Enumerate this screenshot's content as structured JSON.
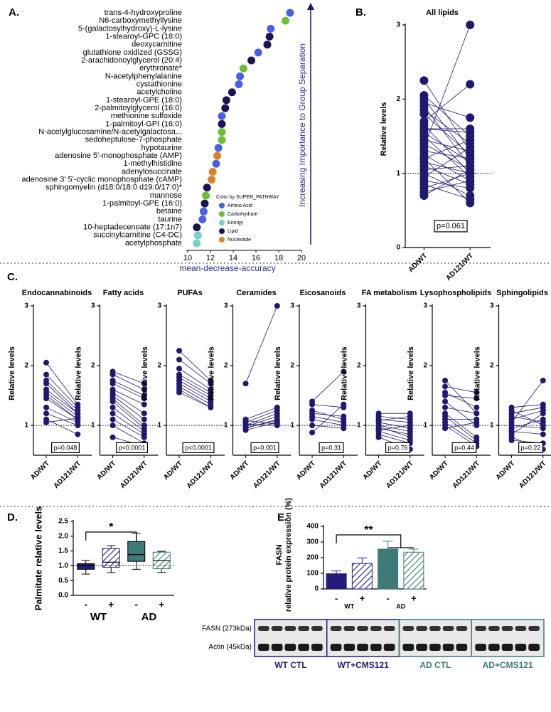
{
  "chart_data": [
    {
      "panel": "A.",
      "type": "dot",
      "categories": [
        "trans-4-hydroxyproline",
        "N6-carboxymethyllysine",
        "5-(galactosylhydroxy)-L-lysine",
        "1-stearoyl-GPC (18:0)",
        "deoxycarnitine",
        "glutathione oxidized (GSSG)",
        "2-arachidonoylglycerol (20:4)",
        "erythronate*",
        "N-acetylphenylalanine",
        "cystathionine",
        "acetylcholine",
        "1-stearoyl-GPE (18:0)",
        "2-palmitoylglycerol (16:0)",
        "methionine sulfoxide",
        "1-palmitoyl-GPI (16:0)",
        "N-acetylglucosamine/N-acetylgalactosa...",
        "sedoheptulose-7-phosphate",
        "hypotaurine",
        "adenosine 5'-monophosphate (AMP)",
        "1-methylhistidine",
        "adenylosuccinate",
        "adenosine 3' 5'-cyclic monophosphate (cAMP)",
        "sphingomyelin (d18:0/18:0 d19:0/17:0)*",
        "mannose",
        "1-palmitoyl-GPE (16:0)",
        "betaine",
        "taurine",
        "10-heptadecenoate (17:1n7)",
        "succinylcarnitine (C4-DC)",
        "acetylphosphate"
      ],
      "series": [
        {
          "name": "Amino Acid",
          "color": "#4a5fe3",
          "values": [
            19.0,
            null,
            17.3,
            null,
            null,
            16.2,
            null,
            null,
            14.6,
            14.5,
            null,
            null,
            null,
            13.0,
            null,
            null,
            null,
            12.7,
            null,
            12.5,
            null,
            null,
            null,
            null,
            null,
            11.4,
            11.3,
            null,
            null,
            null
          ]
        },
        {
          "name": "Carbohydrate",
          "color": "#6cbf35",
          "values": [
            null,
            18.6,
            null,
            null,
            null,
            null,
            null,
            14.9,
            null,
            null,
            null,
            null,
            null,
            null,
            null,
            13.0,
            13.0,
            null,
            null,
            null,
            null,
            null,
            null,
            11.6,
            null,
            null,
            null,
            null,
            null,
            null
          ]
        },
        {
          "name": "Energy",
          "color": "#74d3c3",
          "values": [
            null,
            null,
            null,
            null,
            null,
            null,
            null,
            null,
            null,
            null,
            null,
            null,
            null,
            null,
            null,
            null,
            null,
            null,
            null,
            null,
            null,
            null,
            null,
            null,
            null,
            null,
            null,
            null,
            10.9,
            10.8
          ]
        },
        {
          "name": "Lipid",
          "color": "#1b1450",
          "values": [
            null,
            null,
            null,
            17.2,
            17.0,
            null,
            15.6,
            null,
            null,
            null,
            13.9,
            13.4,
            13.3,
            null,
            13.0,
            null,
            null,
            null,
            null,
            null,
            null,
            null,
            11.7,
            null,
            11.5,
            null,
            null,
            10.8,
            null,
            null
          ]
        },
        {
          "name": "Nucleotide",
          "color": "#d9822b",
          "values": [
            null,
            null,
            null,
            null,
            null,
            null,
            null,
            null,
            null,
            null,
            null,
            null,
            null,
            null,
            null,
            null,
            null,
            null,
            12.6,
            null,
            12.2,
            12.1,
            null,
            null,
            null,
            null,
            null,
            null,
            null,
            null
          ]
        }
      ],
      "xlim": [
        10,
        20
      ],
      "xticks": [
        10,
        12,
        14,
        16,
        18,
        20
      ],
      "xlabel": "mean-decrease-accuracy",
      "ylabel": "Increasing Importance to Group Separation",
      "legend_title": "Color by SUPER_PATHWAY",
      "legend": "lower right"
    },
    {
      "panel": "B.",
      "type": "paired",
      "title": "All lipids",
      "categories": [
        "AD/WT",
        "AD121/WT"
      ],
      "values": [
        [
          2.25,
          2.05,
          2.0,
          1.95,
          1.9,
          1.85,
          1.8,
          1.7,
          1.65,
          1.6,
          1.55,
          1.5,
          1.45,
          1.4,
          1.35,
          1.3,
          1.25,
          1.2,
          1.15,
          1.1,
          1.05,
          1.0,
          0.95,
          0.9,
          0.85,
          0.8,
          0.75,
          1.6,
          1.2,
          0.7
        ],
        [
          1.3,
          1.5,
          1.2,
          1.75,
          1.1,
          1.4,
          1.25,
          2.2,
          1.0,
          1.6,
          1.15,
          0.95,
          1.3,
          1.05,
          3.0,
          1.2,
          0.9,
          1.45,
          1.0,
          0.85,
          1.1,
          0.7,
          1.35,
          0.8,
          0.65,
          1.0,
          0.9,
          1.55,
          0.6,
          1.05
        ]
      ],
      "ylim": [
        0,
        3
      ],
      "yticks": [
        0,
        1,
        2,
        3
      ],
      "ylabel": "Relative levels",
      "refline": 1,
      "annotation": "p=0.061",
      "color": "#1f1a6e"
    },
    {
      "panel": "C.",
      "type": "paired",
      "title": "Endocannabinoids",
      "categories": [
        "AD/WT",
        "AD121/WT"
      ],
      "values": [
        [
          2.05,
          1.85,
          1.75,
          1.7,
          1.55,
          1.5,
          1.45,
          1.3,
          1.2,
          1.1,
          1.05,
          1.6
        ],
        [
          1.35,
          1.3,
          1.25,
          1.2,
          1.15,
          1.1,
          1.1,
          1.05,
          1.0,
          0.85,
          1.12,
          1.2
        ]
      ],
      "ylim": [
        0.5,
        3
      ],
      "yticks": [
        1,
        2,
        3
      ],
      "ylabel": "Relative levels",
      "refline": 1,
      "annotation": "p=0.048",
      "color": "#1f1a6e"
    },
    {
      "type": "paired",
      "title": "Fatty acids",
      "categories": [
        "AD/WT",
        "AD121/WT"
      ],
      "values": [
        [
          1.9,
          1.85,
          1.75,
          1.7,
          1.6,
          1.55,
          1.5,
          1.45,
          1.4,
          1.3,
          1.2,
          1.1,
          1.0,
          0.8
        ],
        [
          1.7,
          1.6,
          1.5,
          1.45,
          1.35,
          1.2,
          1.1,
          1.0,
          0.95,
          0.9,
          0.85,
          0.8,
          0.7,
          0.65
        ]
      ],
      "ylim": [
        0.5,
        3
      ],
      "yticks": [
        1,
        2,
        3
      ],
      "ylabel": "Relative levels",
      "refline": 1,
      "annotation": "p<0.0001",
      "color": "#1f1a6e"
    },
    {
      "type": "paired",
      "title": "PUFAs",
      "categories": [
        "AD/WT",
        "AD121/WT"
      ],
      "values": [
        [
          2.25,
          2.1,
          1.95,
          1.85,
          1.8,
          1.75,
          1.7,
          1.65,
          1.6,
          1.55
        ],
        [
          1.75,
          1.7,
          1.6,
          1.55,
          1.5,
          1.45,
          1.4,
          1.35,
          1.3,
          1.3
        ]
      ],
      "ylim": [
        0.5,
        3
      ],
      "yticks": [
        1,
        2,
        3
      ],
      "ylabel": "Relative levels",
      "refline": 1,
      "annotation": "p<0.0001",
      "color": "#1f1a6e"
    },
    {
      "type": "paired",
      "title": "Ceramides",
      "categories": [
        "AD/WT",
        "AD121/WT"
      ],
      "values": [
        [
          1.7,
          1.1,
          1.05,
          1.0,
          0.98,
          0.95,
          0.92,
          1.08,
          1.02,
          0.96
        ],
        [
          3.0,
          1.3,
          1.25,
          1.2,
          1.15,
          1.1,
          1.05,
          1.02,
          1.0,
          1.08
        ]
      ],
      "ylim": [
        0.5,
        3
      ],
      "yticks": [
        1,
        2,
        3
      ],
      "ylabel": "Relative levels",
      "refline": 1,
      "annotation": "p=0.001",
      "color": "#1f1a6e"
    },
    {
      "type": "paired",
      "title": "Eicosanoids",
      "categories": [
        "AD/WT",
        "AD121/WT"
      ],
      "values": [
        [
          1.4,
          1.35,
          1.2,
          1.15,
          1.1,
          1.0,
          0.88,
          1.25
        ],
        [
          1.9,
          1.3,
          1.15,
          1.05,
          1.0,
          0.95,
          1.35,
          1.1
        ]
      ],
      "ylim": [
        0.5,
        3
      ],
      "yticks": [
        1,
        2,
        3
      ],
      "ylabel": "Relative levels",
      "refline": 1,
      "annotation": "p=0.31",
      "color": "#1f1a6e"
    },
    {
      "type": "paired",
      "title": "FA metabolism",
      "categories": [
        "AD/WT",
        "AD121/WT"
      ],
      "values": [
        [
          1.2,
          1.15,
          1.1,
          1.05,
          1.0,
          0.95,
          0.92,
          0.9,
          0.85,
          0.8,
          1.08,
          0.98
        ],
        [
          1.2,
          1.1,
          1.05,
          0.95,
          0.9,
          0.85,
          1.0,
          0.75,
          0.7,
          0.6,
          1.15,
          0.8
        ]
      ],
      "ylim": [
        0.5,
        3
      ],
      "yticks": [
        1,
        2,
        3
      ],
      "ylabel": "Relative levels",
      "refline": 1,
      "annotation": "p=0.76",
      "color": "#1f1a6e"
    },
    {
      "type": "paired",
      "title": "Lysophospholipids",
      "categories": [
        "AD/WT",
        "AD121/WT"
      ],
      "values": [
        [
          1.75,
          1.65,
          1.55,
          1.5,
          1.4,
          1.3,
          1.2,
          1.15,
          1.1,
          1.05,
          1.0,
          0.95
        ],
        [
          1.2,
          1.55,
          1.3,
          1.45,
          1.0,
          1.2,
          0.8,
          0.75,
          1.1,
          0.7,
          0.65,
          1.05
        ]
      ],
      "ylim": [
        0.5,
        3
      ],
      "yticks": [
        1,
        2,
        3
      ],
      "ylabel": "Relative levels",
      "refline": 1,
      "annotation": "p=0.44",
      "color": "#1f1a6e"
    },
    {
      "type": "paired",
      "title": "Sphingolipids",
      "categories": [
        "AD/WT",
        "AD121/WT"
      ],
      "values": [
        [
          1.3,
          1.25,
          1.2,
          1.1,
          1.05,
          1.0,
          0.95,
          0.9,
          0.85,
          0.8,
          0.75,
          1.15
        ],
        [
          1.35,
          1.0,
          1.3,
          1.25,
          1.75,
          0.95,
          1.1,
          0.85,
          1.2,
          0.6,
          0.7,
          1.05
        ]
      ],
      "ylim": [
        0.5,
        3
      ],
      "yticks": [
        1,
        2,
        3
      ],
      "ylabel": "Relative levels",
      "refline": 1,
      "annotation": "p=0.22",
      "color": "#1f1a6e"
    },
    {
      "panel": "D.",
      "type": "box",
      "categories": [
        "-",
        "+",
        "-",
        "+"
      ],
      "groups": [
        "WT",
        "AD"
      ],
      "boxes": [
        {
          "min": 0.72,
          "q1": 0.88,
          "median": 1.0,
          "q3": 1.07,
          "max": 1.18
        },
        {
          "min": 0.77,
          "q1": 0.95,
          "median": 1.12,
          "q3": 1.58,
          "max": 1.68
        },
        {
          "min": 0.88,
          "q1": 1.15,
          "median": 1.38,
          "q3": 1.82,
          "max": 2.1
        },
        {
          "min": 0.78,
          "q1": 0.9,
          "median": 1.17,
          "q3": 1.46,
          "max": 1.49
        }
      ],
      "colors": [
        "#231c78",
        "#231c78",
        "#3e7b78",
        "#3e7b78"
      ],
      "hatched": [
        false,
        true,
        false,
        true
      ],
      "ylim": [
        0,
        2.5
      ],
      "yticks": [
        {
          "value": 0,
          "label": "0.0"
        },
        0.5,
        {
          "value": 1,
          "label": "1.0"
        },
        1.5,
        {
          "value": 2,
          "label": "2.0"
        },
        2.5
      ],
      "ylabel": "Palmitate relative levels",
      "refline": 1,
      "significance": [
        {
          "label": "*",
          "from": [
            0
          ],
          "to": [
            2
          ]
        }
      ]
    },
    {
      "panel": "E.",
      "type": "bar",
      "categories": [
        "-",
        "+",
        "-",
        "+"
      ],
      "groups": [
        "WT",
        "AD"
      ],
      "values": [
        97,
        163,
        255,
        235
      ],
      "errors": [
        18,
        35,
        50,
        20
      ],
      "colors": [
        "#231c78",
        "#231c78",
        "#3e7b78",
        "#3e7b78"
      ],
      "hatched": [
        false,
        true,
        false,
        true
      ],
      "ylim": [
        0,
        400
      ],
      "yticks": [
        0,
        100,
        200,
        300,
        400
      ],
      "ylabel": [
        "FASN",
        "relative protein expression (%)"
      ],
      "significance": [
        {
          "label": "**",
          "from": [
            0
          ],
          "to": [
            2,
            3
          ]
        }
      ],
      "blot": {
        "rows": [
          "FASN (273kDa)",
          "Actin (45kDa)"
        ],
        "groups": [
          {
            "label": "WT CTL",
            "color": "#231c78"
          },
          {
            "label": "WT+CMS121",
            "color": "#231c78"
          },
          {
            "label": "AD CTL",
            "color": "#3e7b78"
          },
          {
            "label": "AD+CMS121",
            "color": "#3e7b78"
          }
        ]
      }
    }
  ]
}
